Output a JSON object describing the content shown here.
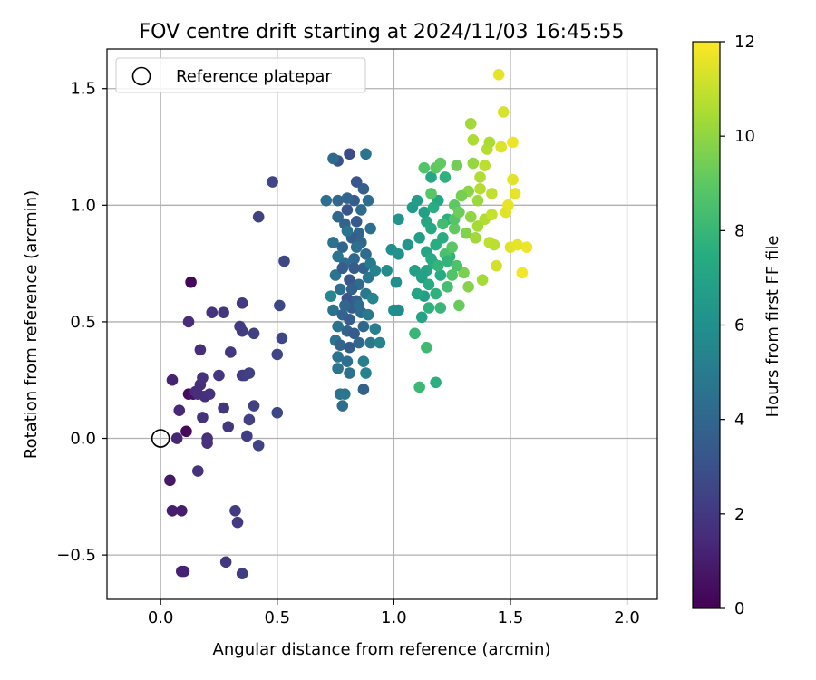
{
  "chart_data": {
    "type": "scatter",
    "title": "FOV centre drift starting at 2024/11/03 16:45:55",
    "xlabel": "Angular distance from reference (arcmin)",
    "ylabel": "Rotation from reference (arcmin)",
    "xlim": [
      -0.23,
      2.13
    ],
    "ylim": [
      -0.69,
      1.67
    ],
    "xticks": [
      0.0,
      0.5,
      1.0,
      1.5,
      2.0
    ],
    "xtick_labels": [
      "0.0",
      "0.5",
      "1.0",
      "1.5",
      "2.0"
    ],
    "yticks": [
      -0.5,
      0.0,
      0.5,
      1.0,
      1.5
    ],
    "ytick_labels": [
      "−0.5",
      "0.0",
      "0.5",
      "1.0",
      "1.5"
    ],
    "grid": true,
    "legend": {
      "placement": "top-left",
      "entries": [
        "Reference platepar"
      ]
    },
    "reference_point": {
      "x": 0.0,
      "y": 0.0
    },
    "colorbar": {
      "label": "Hours from first FF file",
      "colormap": "viridis",
      "range": [
        0,
        12
      ],
      "ticks": [
        0,
        2,
        4,
        6,
        8,
        10,
        12
      ],
      "tick_labels": [
        "0",
        "2",
        "4",
        "6",
        "8",
        "10",
        "12"
      ]
    },
    "points": [
      [
        0.13,
        0.67,
        0.2
      ],
      [
        0.12,
        0.19,
        0.3
      ],
      [
        0.11,
        0.03,
        0.3
      ],
      [
        0.14,
        0.19,
        0.6
      ],
      [
        0.04,
        -0.18,
        0.8
      ],
      [
        0.05,
        -0.31,
        1.0
      ],
      [
        0.09,
        -0.31,
        1.0
      ],
      [
        0.09,
        -0.57,
        1.2
      ],
      [
        0.1,
        -0.57,
        1.2
      ],
      [
        0.05,
        0.25,
        1.2
      ],
      [
        0.07,
        0.0,
        1.3
      ],
      [
        0.08,
        0.12,
        1.4
      ],
      [
        0.12,
        0.5,
        1.5
      ],
      [
        0.15,
        0.2,
        1.5
      ],
      [
        0.16,
        0.19,
        1.6
      ],
      [
        0.17,
        0.38,
        1.6
      ],
      [
        0.17,
        0.23,
        1.6
      ],
      [
        0.18,
        0.26,
        1.7
      ],
      [
        0.18,
        0.09,
        1.7
      ],
      [
        0.19,
        0.18,
        1.6
      ],
      [
        0.2,
        0.0,
        1.7
      ],
      [
        0.21,
        0.19,
        1.7
      ],
      [
        0.22,
        0.54,
        1.8
      ],
      [
        0.16,
        -0.14,
        1.8
      ],
      [
        0.2,
        -0.02,
        1.8
      ],
      [
        0.25,
        0.27,
        1.9
      ],
      [
        0.27,
        0.13,
        1.9
      ],
      [
        0.27,
        0.54,
        1.9
      ],
      [
        0.29,
        0.05,
        2.0
      ],
      [
        0.28,
        -0.53,
        2.0
      ],
      [
        0.3,
        0.37,
        2.0
      ],
      [
        0.32,
        -0.31,
        2.1
      ],
      [
        0.33,
        -0.36,
        2.1
      ],
      [
        0.34,
        0.48,
        2.1
      ],
      [
        0.35,
        0.46,
        2.1
      ],
      [
        0.35,
        0.58,
        2.1
      ],
      [
        0.35,
        0.27,
        2.2
      ],
      [
        0.36,
        0.27,
        2.2
      ],
      [
        0.37,
        0.01,
        2.2
      ],
      [
        0.35,
        -0.58,
        2.2
      ],
      [
        0.38,
        0.28,
        2.3
      ],
      [
        0.38,
        0.08,
        2.3
      ],
      [
        0.4,
        0.45,
        2.3
      ],
      [
        0.4,
        0.14,
        2.3
      ],
      [
        0.42,
        -0.03,
        2.4
      ],
      [
        0.42,
        0.95,
        2.4
      ],
      [
        0.48,
        1.1,
        2.5
      ],
      [
        0.5,
        0.36,
        2.5
      ],
      [
        0.51,
        0.57,
        2.6
      ],
      [
        0.52,
        0.43,
        2.6
      ],
      [
        0.53,
        0.76,
        2.6
      ],
      [
        0.5,
        0.11,
        2.6
      ],
      [
        0.81,
        1.22,
        2.8
      ],
      [
        0.76,
        1.19,
        3.1
      ],
      [
        0.74,
        1.2,
        4.2
      ],
      [
        0.88,
        1.22,
        4.6
      ],
      [
        0.71,
        1.02,
        4.4
      ],
      [
        0.76,
        1.02,
        4.0
      ],
      [
        0.8,
        0.98,
        3.2
      ],
      [
        0.83,
        1.02,
        3.5
      ],
      [
        0.87,
        1.07,
        3.7
      ],
      [
        0.89,
        1.02,
        4.3
      ],
      [
        0.76,
        0.95,
        4.1
      ],
      [
        0.79,
        0.92,
        3.8
      ],
      [
        0.84,
        0.93,
        3.4
      ],
      [
        0.85,
        0.88,
        3.9
      ],
      [
        0.9,
        0.9,
        4.4
      ],
      [
        0.74,
        0.84,
        4.5
      ],
      [
        0.78,
        0.82,
        3.9
      ],
      [
        0.82,
        0.86,
        3.6
      ],
      [
        0.86,
        0.84,
        4.0
      ],
      [
        0.88,
        0.79,
        4.2
      ],
      [
        0.76,
        0.78,
        4.7
      ],
      [
        0.79,
        0.75,
        4.3
      ],
      [
        0.83,
        0.77,
        4.1
      ],
      [
        0.87,
        0.73,
        3.8
      ],
      [
        0.9,
        0.75,
        5.0
      ],
      [
        0.75,
        0.7,
        4.6
      ],
      [
        0.78,
        0.73,
        3.6
      ],
      [
        0.81,
        0.68,
        3.3
      ],
      [
        0.85,
        0.66,
        4.2
      ],
      [
        0.89,
        0.69,
        4.8
      ],
      [
        0.92,
        0.72,
        5.3
      ],
      [
        0.73,
        0.61,
        5.6
      ],
      [
        0.77,
        0.64,
        4.4
      ],
      [
        0.8,
        0.6,
        3.2
      ],
      [
        0.84,
        0.59,
        3.7
      ],
      [
        0.88,
        0.62,
        4.9
      ],
      [
        0.91,
        0.6,
        5.5
      ],
      [
        0.74,
        0.55,
        4.5
      ],
      [
        0.78,
        0.53,
        3.9
      ],
      [
        0.82,
        0.56,
        3.6
      ],
      [
        0.86,
        0.54,
        4.2
      ],
      [
        0.89,
        0.53,
        4.9
      ],
      [
        0.76,
        0.48,
        4.6
      ],
      [
        0.8,
        0.46,
        3.8
      ],
      [
        0.83,
        0.45,
        3.5
      ],
      [
        0.87,
        0.48,
        4.1
      ],
      [
        0.92,
        0.47,
        5.1
      ],
      [
        0.75,
        0.42,
        4.7
      ],
      [
        0.77,
        0.4,
        3.9
      ],
      [
        0.81,
        0.39,
        3.5
      ],
      [
        0.85,
        0.41,
        4.0
      ],
      [
        0.9,
        0.41,
        4.8
      ],
      [
        0.94,
        0.41,
        5.4
      ],
      [
        0.76,
        0.35,
        4.6
      ],
      [
        0.8,
        0.33,
        4.4
      ],
      [
        0.87,
        0.33,
        5.2
      ],
      [
        0.76,
        0.3,
        4.7
      ],
      [
        0.81,
        0.28,
        4.5
      ],
      [
        0.88,
        0.28,
        5.3
      ],
      [
        0.77,
        0.19,
        4.6
      ],
      [
        0.79,
        0.19,
        4.8
      ],
      [
        0.78,
        0.14,
        4.3
      ],
      [
        0.87,
        0.21,
        3.7
      ],
      [
        0.83,
        0.73,
        3.5
      ],
      [
        0.86,
        0.98,
        4.2
      ],
      [
        0.84,
        1.1,
        3.3
      ],
      [
        0.8,
        1.03,
        3.9
      ],
      [
        0.8,
        0.89,
        4.6
      ],
      [
        0.84,
        0.82,
        4.4
      ],
      [
        0.82,
        0.64,
        3.7
      ],
      [
        0.79,
        0.57,
        4.0
      ],
      [
        0.85,
        0.57,
        4.3
      ],
      [
        0.81,
        0.51,
        3.6
      ],
      [
        0.97,
        0.72,
        5.8
      ],
      [
        0.99,
        0.81,
        6.0
      ],
      [
        1.02,
        0.94,
        6.2
      ],
      [
        1.02,
        0.79,
        6.1
      ],
      [
        1.01,
        0.67,
        5.9
      ],
      [
        1.0,
        0.55,
        6.0
      ],
      [
        1.02,
        0.55,
        5.8
      ],
      [
        1.06,
        0.83,
        6.3
      ],
      [
        1.08,
        0.99,
        6.5
      ],
      [
        1.09,
        0.72,
        6.7
      ],
      [
        1.1,
        1.02,
        6.6
      ],
      [
        1.11,
        0.86,
        6.6
      ],
      [
        1.12,
        0.69,
        6.8
      ],
      [
        1.12,
        0.52,
        6.9
      ],
      [
        1.13,
        0.61,
        6.8
      ],
      [
        1.14,
        0.8,
        7.1
      ],
      [
        1.14,
        0.93,
        7.2
      ],
      [
        1.15,
        0.66,
        7.4
      ],
      [
        1.16,
        1.12,
        7.2
      ],
      [
        1.16,
        0.9,
        7.3
      ],
      [
        1.17,
        0.75,
        7.6
      ],
      [
        1.18,
        0.62,
        7.7
      ],
      [
        1.18,
        0.83,
        7.5
      ],
      [
        1.19,
        1.02,
        7.2
      ],
      [
        1.2,
        0.7,
        7.4
      ],
      [
        1.21,
        0.86,
        7.5
      ],
      [
        1.22,
        1.12,
        7.7
      ],
      [
        1.23,
        0.94,
        7.6
      ],
      [
        1.24,
        0.78,
        7.8
      ],
      [
        1.09,
        0.45,
        8.0
      ],
      [
        1.14,
        0.39,
        8.2
      ],
      [
        1.18,
        0.24,
        7.6
      ],
      [
        1.11,
        0.22,
        8.1
      ],
      [
        1.15,
        0.56,
        7.7
      ],
      [
        1.2,
        0.56,
        8.0
      ],
      [
        1.21,
        0.92,
        8.3
      ],
      [
        1.22,
        0.79,
        8.5
      ],
      [
        1.23,
        0.65,
        8.4
      ],
      [
        1.13,
        1.16,
        8.7
      ],
      [
        1.18,
        1.16,
        9.0
      ],
      [
        1.2,
        1.18,
        9.1
      ],
      [
        1.16,
        1.05,
        8.9
      ],
      [
        1.25,
        0.82,
        8.9
      ],
      [
        1.25,
        0.7,
        8.7
      ],
      [
        1.26,
        1.0,
        9.0
      ],
      [
        1.26,
        0.9,
        9.1
      ],
      [
        1.27,
        1.17,
        9.4
      ],
      [
        1.28,
        0.57,
        9.2
      ],
      [
        1.3,
        0.71,
        9.6
      ],
      [
        1.31,
        0.88,
        9.7
      ],
      [
        1.32,
        1.06,
        9.9
      ],
      [
        1.32,
        0.65,
        9.8
      ],
      [
        1.33,
        0.95,
        10.0
      ],
      [
        1.34,
        1.18,
        10.1
      ],
      [
        1.33,
        1.35,
        10.3
      ],
      [
        1.34,
        1.28,
        10.5
      ],
      [
        1.35,
        0.86,
        10.3
      ],
      [
        1.36,
        1.02,
        10.2
      ],
      [
        1.37,
        1.12,
        10.6
      ],
      [
        1.38,
        0.68,
        10.4
      ],
      [
        1.39,
        0.94,
        10.6
      ],
      [
        1.39,
        1.17,
        10.8
      ],
      [
        1.4,
        1.24,
        10.7
      ],
      [
        1.41,
        1.27,
        10.5
      ],
      [
        1.41,
        0.84,
        10.9
      ],
      [
        1.42,
        0.96,
        11.0
      ],
      [
        1.43,
        0.83,
        10.8
      ],
      [
        1.44,
        0.74,
        11.2
      ],
      [
        1.45,
        1.56,
        11.6
      ],
      [
        1.46,
        1.25,
        11.4
      ],
      [
        1.47,
        1.4,
        11.3
      ],
      [
        1.48,
        0.97,
        11.5
      ],
      [
        1.49,
        1.0,
        11.6
      ],
      [
        1.5,
        0.82,
        11.5
      ],
      [
        1.51,
        1.27,
        11.7
      ],
      [
        1.51,
        1.11,
        11.5
      ],
      [
        1.52,
        1.05,
        11.6
      ],
      [
        1.53,
        0.83,
        11.6
      ],
      [
        1.55,
        0.71,
        11.8
      ],
      [
        1.57,
        0.82,
        11.7
      ],
      [
        1.13,
        0.97,
        6.8
      ],
      [
        1.16,
        0.77,
        7.4
      ],
      [
        1.19,
        0.74,
        7.9
      ],
      [
        1.14,
        0.72,
        7.0
      ],
      [
        1.17,
        0.99,
        7.5
      ],
      [
        1.1,
        0.62,
        7.1
      ],
      [
        1.12,
        0.7,
        6.9
      ],
      [
        1.26,
        0.94,
        8.8
      ],
      [
        1.28,
        0.97,
        9.3
      ],
      [
        1.29,
        1.04,
        9.5
      ],
      [
        1.36,
        0.91,
        10.4
      ],
      [
        1.37,
        1.07,
        10.7
      ],
      [
        1.42,
        1.05,
        10.9
      ],
      [
        1.23,
        0.76,
        7.9
      ],
      [
        1.27,
        0.74,
        8.6
      ]
    ]
  }
}
